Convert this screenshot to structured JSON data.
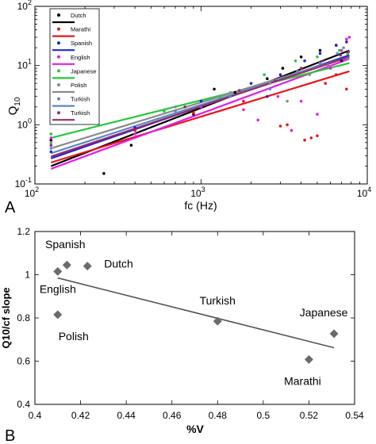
{
  "panels": {
    "a": {
      "letter": "A"
    },
    "b": {
      "letter": "B"
    }
  },
  "chart_data": [
    {
      "type": "scatter",
      "panel": "A",
      "xlabel": "fc (Hz)",
      "ylabel_main": "Q",
      "ylabel_sub": "10",
      "xscale": "log",
      "yscale": "log",
      "xlim": [
        100,
        10000
      ],
      "ylim": [
        0.1,
        100
      ],
      "x_ticks": [
        {
          "v": 100,
          "base": "10",
          "exp": "2"
        },
        {
          "v": 1000,
          "base": "10",
          "exp": "3"
        },
        {
          "v": 10000,
          "base": "10",
          "exp": "4"
        }
      ],
      "y_ticks": [
        {
          "v": 0.1,
          "base": "10",
          "exp": "-1"
        },
        {
          "v": 1,
          "base": "10",
          "exp": "0"
        },
        {
          "v": 10,
          "base": "10",
          "exp": "1"
        },
        {
          "v": 100,
          "base": "10",
          "exp": "2"
        }
      ],
      "legend_position": "top-left",
      "series": [
        {
          "name": "Dutch",
          "color": "#000000",
          "fit": [
            [
              125,
              0.2
            ],
            [
              7800,
              18
            ]
          ],
          "points": [
            [
              125,
              0.55
            ],
            [
              260,
              0.15
            ],
            [
              380,
              0.45
            ],
            [
              900,
              1.5
            ],
            [
              1600,
              3.5
            ],
            [
              2500,
              6
            ],
            [
              3100,
              9
            ],
            [
              4000,
              14
            ],
            [
              5200,
              18
            ],
            [
              6500,
              22
            ],
            [
              7000,
              12
            ],
            [
              1200,
              4
            ]
          ]
        },
        {
          "name": "Marathi",
          "color": "#e8151b",
          "fit": [
            [
              125,
              0.23
            ],
            [
              7800,
              8
            ]
          ],
          "points": [
            [
              125,
              0.5
            ],
            [
              400,
              0.8
            ],
            [
              900,
              1.6
            ],
            [
              1800,
              2.5
            ],
            [
              3000,
              0.95
            ],
            [
              3300,
              1.0
            ],
            [
              4200,
              0.55
            ],
            [
              4600,
              0.6
            ],
            [
              5000,
              0.65
            ],
            [
              5600,
              5
            ],
            [
              6500,
              7
            ],
            [
              7500,
              4
            ]
          ]
        },
        {
          "name": "Spanish",
          "color": "#2323d8",
          "fit": [
            [
              125,
              0.27
            ],
            [
              7800,
              15
            ]
          ],
          "points": [
            [
              125,
              0.35
            ],
            [
              400,
              0.9
            ],
            [
              1000,
              2.5
            ],
            [
              2000,
              5
            ],
            [
              3000,
              7
            ],
            [
              4200,
              12
            ],
            [
              5200,
              16
            ],
            [
              6500,
              22
            ],
            [
              7500,
              25
            ],
            [
              2500,
              3
            ]
          ]
        },
        {
          "name": "English",
          "color": "#e21de8",
          "fit": [
            [
              125,
              0.18
            ],
            [
              7800,
              13
            ]
          ],
          "points": [
            [
              125,
              0.6
            ],
            [
              400,
              0.7
            ],
            [
              1000,
              2
            ],
            [
              1800,
              1.8
            ],
            [
              2200,
              1.2
            ],
            [
              2900,
              3
            ],
            [
              3500,
              0.8
            ],
            [
              4000,
              2.5
            ],
            [
              5000,
              1.5
            ],
            [
              6000,
              9
            ],
            [
              7000,
              18
            ],
            [
              7500,
              28
            ],
            [
              7800,
              30
            ]
          ]
        },
        {
          "name": "Japanese",
          "color": "#22c93a",
          "fit": [
            [
              125,
              0.6
            ],
            [
              7800,
              11
            ]
          ],
          "points": [
            [
              125,
              0.7
            ],
            [
              600,
              1.7
            ],
            [
              1300,
              3
            ],
            [
              2400,
              7
            ],
            [
              3700,
              12
            ],
            [
              5000,
              14
            ],
            [
              6800,
              18
            ],
            [
              7600,
              16
            ]
          ]
        },
        {
          "name": "Polish",
          "color": "#8a8a8a",
          "fit": [
            [
              125,
              0.4
            ],
            [
              7800,
              14
            ]
          ],
          "points": [
            [
              125,
              0.5
            ],
            [
              700,
              2
            ],
            [
              1500,
              3.5
            ],
            [
              2600,
              5
            ],
            [
              3300,
              2.5
            ],
            [
              4500,
              7
            ],
            [
              5800,
              10
            ],
            [
              7200,
              20
            ]
          ]
        },
        {
          "name": "Turkish",
          "color": "#5b87c4",
          "fit": [
            [
              125,
              0.33
            ],
            [
              7800,
              14
            ]
          ],
          "points": [
            [
              125,
              0.4
            ],
            [
              700,
              1.7
            ],
            [
              1500,
              3
            ],
            [
              2600,
              4
            ],
            [
              3800,
              8
            ],
            [
              5200,
              11
            ],
            [
              6600,
              16
            ],
            [
              7600,
              13
            ]
          ]
        },
        {
          "name": "Turkish",
          "color": "#9b2b67",
          "fit": [
            [
              125,
              0.29
            ],
            [
              7800,
              14
            ]
          ],
          "points": [
            [
              125,
              0.45
            ],
            [
              800,
              2
            ],
            [
              1700,
              3.8
            ],
            [
              2800,
              5.5
            ],
            [
              4000,
              9
            ],
            [
              5400,
              12
            ],
            [
              6900,
              15
            ],
            [
              7700,
              17
            ]
          ]
        }
      ]
    },
    {
      "type": "scatter",
      "panel": "B",
      "xlabel": "%V",
      "ylabel": "Q10/cf slope",
      "xlim": [
        0.4,
        0.54
      ],
      "ylim": [
        0.4,
        1.2
      ],
      "xticks": [
        "0.4",
        "0.42",
        "0.44",
        "0.46",
        "0.48",
        "0.5",
        "0.52",
        "0.54"
      ],
      "yticks": [
        "0.4",
        "0.6",
        "0.8",
        "1",
        "1.2"
      ],
      "points": [
        {
          "x": 0.41,
          "y": 1.015,
          "label": "English"
        },
        {
          "x": 0.414,
          "y": 1.045,
          "label": "Spanish"
        },
        {
          "x": 0.423,
          "y": 1.04,
          "label": "Dutch"
        },
        {
          "x": 0.41,
          "y": 0.815,
          "label": "Polish"
        },
        {
          "x": 0.48,
          "y": 0.785,
          "label": "Turkish"
        },
        {
          "x": 0.52,
          "y": 0.608,
          "label": "Marathi"
        },
        {
          "x": 0.531,
          "y": 0.727,
          "label": "Japanese"
        }
      ],
      "fit_line": [
        [
          0.41,
          0.985
        ],
        [
          0.531,
          0.662
        ]
      ],
      "colors": {
        "marker": "#6b6b6b",
        "line": "#555555"
      }
    }
  ]
}
